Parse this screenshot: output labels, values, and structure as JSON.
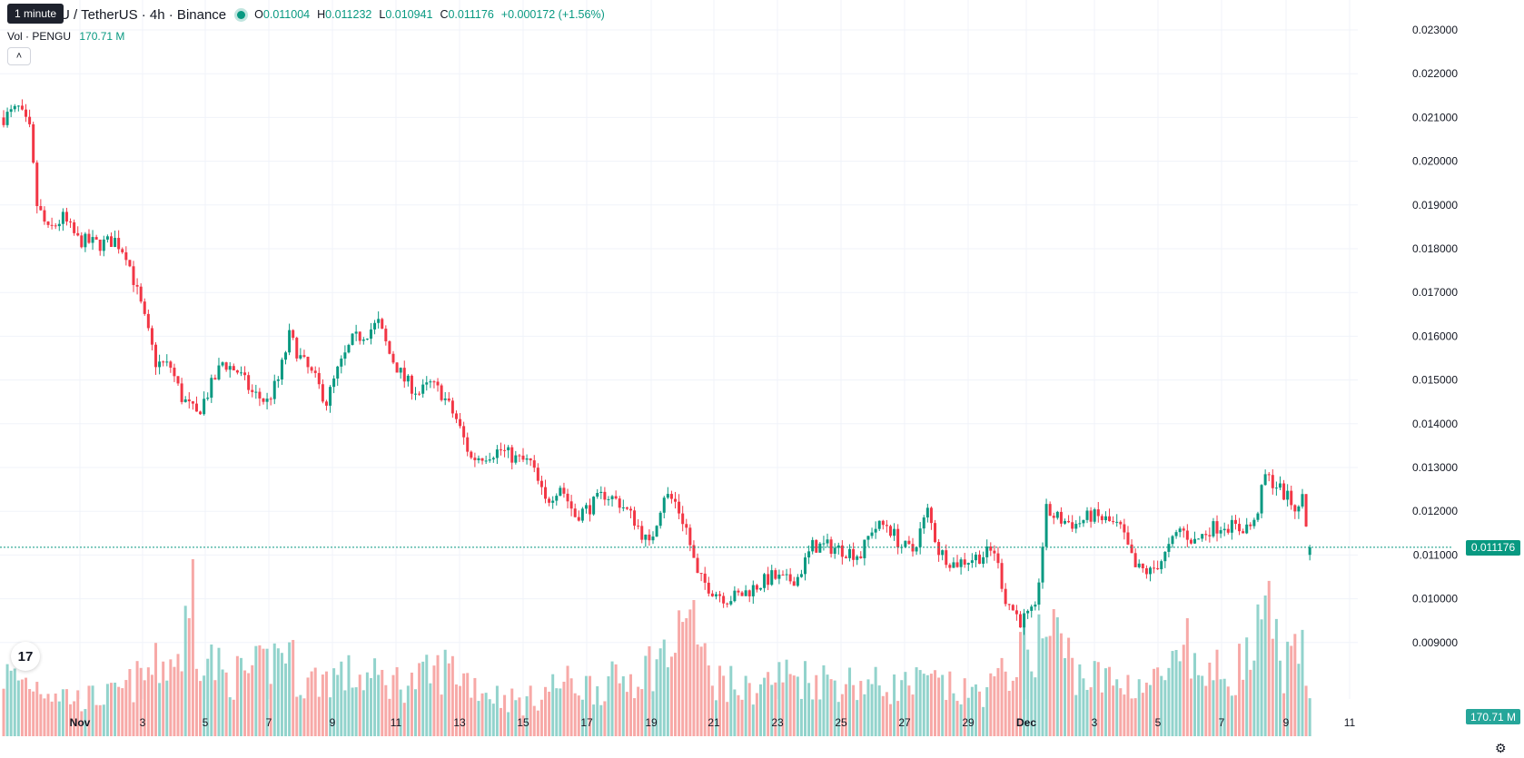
{
  "header": {
    "symbol_title": "U / TetherUS · 4h · Binance",
    "tooltip": "1 minute",
    "ohlc": {
      "o_label": "O",
      "o": "0.011004",
      "h_label": "H",
      "h": "0.011232",
      "l_label": "L",
      "l": "0.010941",
      "c_label": "C",
      "c": "0.011176"
    },
    "change": "+0.000172 (+1.56%)",
    "volume_label": "Vol · PENGU",
    "volume_value": "170.71 M",
    "collapse_icon": "chevron-up-icon",
    "logo": "tradingview-logo-icon",
    "settings_icon": "gear-icon"
  },
  "colors": {
    "up": "#089981",
    "down": "#f23645",
    "vol_up": "#92d3cc",
    "vol_down": "#f7a9a7",
    "grid": "#f0f3fa"
  },
  "price_axis": {
    "labels": [
      "0.023000",
      "0.022000",
      "0.021000",
      "0.020000",
      "0.019000",
      "0.018000",
      "0.017000",
      "0.016000",
      "0.015000",
      "0.014000",
      "0.013000",
      "0.012000",
      "0.011000",
      "0.010000",
      "0.009000"
    ],
    "last_price": "0.011176",
    "last_volume": "170.71 M"
  },
  "time_axis": {
    "labels": [
      "Nov",
      "3",
      "5",
      "7",
      "9",
      "11",
      "13",
      "15",
      "17",
      "19",
      "21",
      "23",
      "25",
      "27",
      "29",
      "Dec",
      "3",
      "5",
      "7",
      "9",
      "11"
    ]
  },
  "chart_data": {
    "type": "candlestick",
    "title": "PENGU / TetherUS · 4h · Binance",
    "ylim": [
      0.0088,
      0.0232
    ],
    "grid": true,
    "legend_placement": "top-left",
    "anchors": [
      [
        0,
        0.021
      ],
      [
        4,
        0.0212
      ],
      [
        7,
        0.0207
      ],
      [
        9,
        0.019
      ],
      [
        12,
        0.0184
      ],
      [
        16,
        0.0187
      ],
      [
        20,
        0.0182
      ],
      [
        26,
        0.0181
      ],
      [
        30,
        0.0182
      ],
      [
        33,
        0.0179
      ],
      [
        37,
        0.0167
      ],
      [
        41,
        0.0154
      ],
      [
        45,
        0.0153
      ],
      [
        48,
        0.0146
      ],
      [
        52,
        0.0142
      ],
      [
        55,
        0.0147
      ],
      [
        59,
        0.0154
      ],
      [
        63,
        0.0152
      ],
      [
        67,
        0.0147
      ],
      [
        71,
        0.0145
      ],
      [
        74,
        0.015
      ],
      [
        77,
        0.016
      ],
      [
        80,
        0.0155
      ],
      [
        84,
        0.015
      ],
      [
        87,
        0.0145
      ],
      [
        90,
        0.0152
      ],
      [
        94,
        0.0159
      ],
      [
        98,
        0.0161
      ],
      [
        101,
        0.0163
      ],
      [
        104,
        0.0156
      ],
      [
        108,
        0.015
      ],
      [
        112,
        0.0147
      ],
      [
        115,
        0.0149
      ],
      [
        118,
        0.0147
      ],
      [
        122,
        0.0141
      ],
      [
        126,
        0.0132
      ],
      [
        130,
        0.0133
      ],
      [
        134,
        0.0134
      ],
      [
        138,
        0.0132
      ],
      [
        142,
        0.0131
      ],
      [
        146,
        0.0122
      ],
      [
        150,
        0.0126
      ],
      [
        154,
        0.0119
      ],
      [
        158,
        0.0121
      ],
      [
        162,
        0.0124
      ],
      [
        166,
        0.0122
      ],
      [
        170,
        0.0118
      ],
      [
        174,
        0.0112
      ],
      [
        178,
        0.0124
      ],
      [
        181,
        0.0122
      ],
      [
        184,
        0.0116
      ],
      [
        187,
        0.0105
      ],
      [
        191,
        0.0102
      ],
      [
        195,
        0.01
      ],
      [
        199,
        0.0101
      ],
      [
        203,
        0.0103
      ],
      [
        207,
        0.0105
      ],
      [
        211,
        0.0104
      ],
      [
        214,
        0.0105
      ],
      [
        218,
        0.0112
      ],
      [
        222,
        0.0112
      ],
      [
        227,
        0.0111
      ],
      [
        231,
        0.011
      ],
      [
        234,
        0.0116
      ],
      [
        238,
        0.0117
      ],
      [
        242,
        0.0112
      ],
      [
        245,
        0.0111
      ],
      [
        249,
        0.012
      ],
      [
        252,
        0.0111
      ],
      [
        256,
        0.0108
      ],
      [
        260,
        0.0109
      ],
      [
        264,
        0.011
      ],
      [
        267,
        0.0111
      ],
      [
        270,
        0.01
      ],
      [
        274,
        0.0095
      ],
      [
        278,
        0.0097
      ],
      [
        281,
        0.012
      ],
      [
        285,
        0.0118
      ],
      [
        289,
        0.0117
      ],
      [
        293,
        0.0119
      ],
      [
        297,
        0.0118
      ],
      [
        301,
        0.0116
      ],
      [
        305,
        0.0107
      ],
      [
        309,
        0.0106
      ],
      [
        313,
        0.011
      ],
      [
        317,
        0.0116
      ],
      [
        321,
        0.0113
      ],
      [
        325,
        0.0116
      ],
      [
        329,
        0.0117
      ],
      [
        333,
        0.0116
      ],
      [
        337,
        0.0117
      ],
      [
        340,
        0.0128
      ],
      [
        343,
        0.0126
      ],
      [
        346,
        0.0123
      ],
      [
        349,
        0.012
      ],
      [
        350,
        0.0124
      ],
      [
        352,
        0.0111
      ]
    ],
    "volume_anchors": [
      [
        0,
        0.3
      ],
      [
        10,
        0.25
      ],
      [
        20,
        0.18
      ],
      [
        30,
        0.2
      ],
      [
        40,
        0.32
      ],
      [
        48,
        0.4
      ],
      [
        51,
        0.78
      ],
      [
        52,
        0.46
      ],
      [
        60,
        0.28
      ],
      [
        70,
        0.33
      ],
      [
        76,
        0.45
      ],
      [
        80,
        0.26
      ],
      [
        90,
        0.3
      ],
      [
        100,
        0.28
      ],
      [
        110,
        0.26
      ],
      [
        120,
        0.34
      ],
      [
        130,
        0.22
      ],
      [
        140,
        0.16
      ],
      [
        150,
        0.26
      ],
      [
        160,
        0.24
      ],
      [
        170,
        0.3
      ],
      [
        180,
        0.42
      ],
      [
        185,
        0.52
      ],
      [
        190,
        0.3
      ],
      [
        200,
        0.22
      ],
      [
        210,
        0.3
      ],
      [
        220,
        0.28
      ],
      [
        230,
        0.26
      ],
      [
        240,
        0.24
      ],
      [
        250,
        0.26
      ],
      [
        260,
        0.2
      ],
      [
        268,
        0.26
      ],
      [
        272,
        0.36
      ],
      [
        280,
        0.48
      ],
      [
        283,
        0.5
      ],
      [
        290,
        0.3
      ],
      [
        300,
        0.26
      ],
      [
        310,
        0.26
      ],
      [
        316,
        0.34
      ],
      [
        320,
        0.32
      ],
      [
        330,
        0.3
      ],
      [
        337,
        0.4
      ],
      [
        340,
        0.62
      ],
      [
        345,
        0.34
      ],
      [
        350,
        0.38
      ],
      [
        352,
        0.16
      ]
    ],
    "volume_spikes": {
      "51": 0.78,
      "50": 0.52,
      "184": 0.52,
      "186": 0.6,
      "283": 0.56,
      "319": 0.52,
      "340": 0.62
    },
    "n_candles": 353
  }
}
